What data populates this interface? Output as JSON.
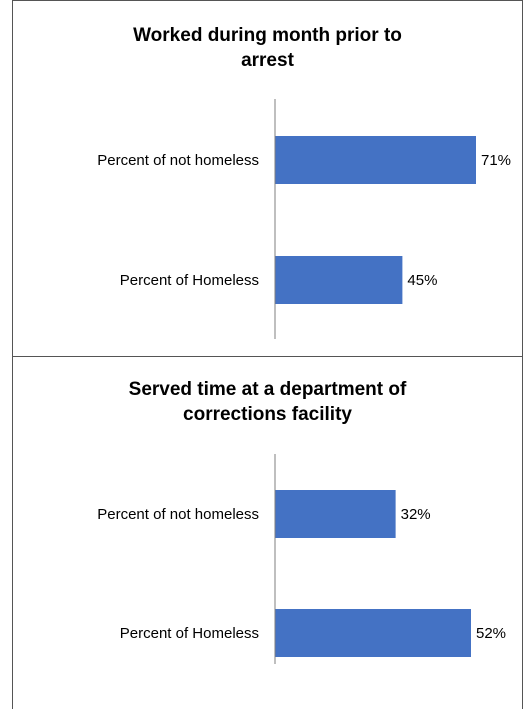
{
  "chart_data": [
    {
      "type": "bar",
      "orientation": "horizontal",
      "title_lines": [
        "Worked during month prior to",
        "arrest"
      ],
      "categories": [
        "Percent of not homeless",
        "Percent of Homeless"
      ],
      "values": [
        71,
        45
      ],
      "data_labels": [
        "71%",
        "45%"
      ],
      "xlim": [
        0,
        75
      ],
      "bar_color": "#4472C4",
      "grid": false,
      "legend": "none"
    },
    {
      "type": "bar",
      "orientation": "horizontal",
      "title_lines": [
        "Served time at a department of",
        "corrections facility"
      ],
      "categories": [
        "Percent of not homeless",
        "Percent of Homeless"
      ],
      "values": [
        32,
        52
      ],
      "data_labels": [
        "32%",
        "52%"
      ],
      "xlim": [
        0,
        55
      ],
      "bar_color": "#4472C4",
      "grid": false,
      "legend": "none"
    }
  ]
}
